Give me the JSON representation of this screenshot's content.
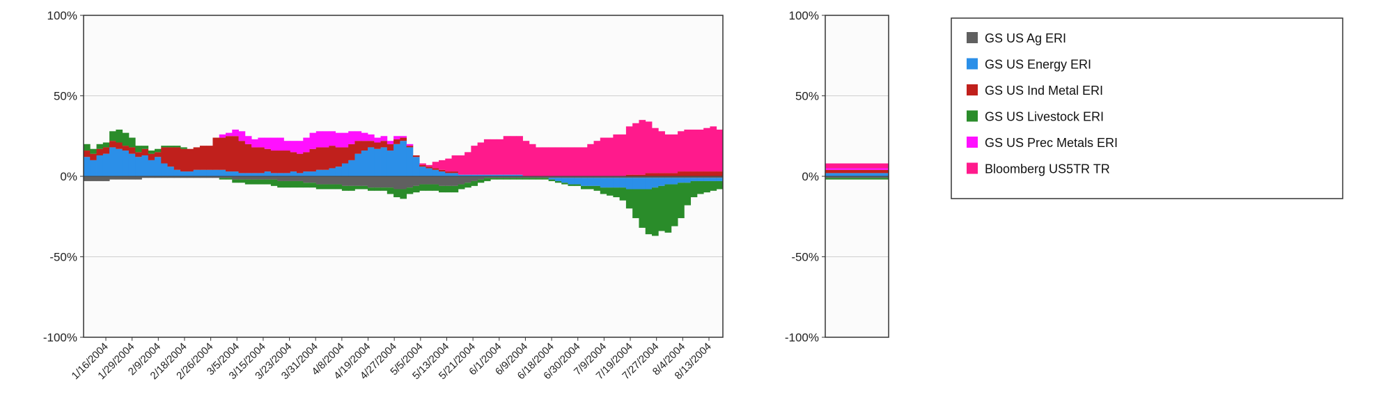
{
  "chart_data": [
    {
      "type": "bar",
      "stacked": true,
      "ylim": [
        -100,
        100
      ],
      "yticks": [
        "100%",
        "50%",
        "0%",
        "-50%",
        "-100%"
      ],
      "ytick_values": [
        100,
        50,
        0,
        -50,
        -100
      ],
      "grid": true,
      "x_tick_labels": [
        "1/16/2004",
        "1/29/2004",
        "2/9/2004",
        "2/18/2004",
        "2/26/2004",
        "3/5/2004",
        "3/15/2004",
        "3/23/2004",
        "3/31/2004",
        "4/8/2004",
        "4/19/2004",
        "4/27/2004",
        "5/5/2004",
        "5/13/2004",
        "5/21/2004",
        "6/1/2004",
        "6/9/2004",
        "6/18/2004",
        "6/30/2004",
        "7/9/2004",
        "7/19/2004",
        "7/27/2004",
        "8/4/2004",
        "8/13/2004"
      ],
      "series": [
        {
          "name": "GS US Ag ERI",
          "color": "#606060",
          "values": [
            -3,
            -3,
            -3,
            -3,
            -2,
            -2,
            -2,
            -2,
            -2,
            -1,
            -1,
            -1,
            -1,
            -1,
            -1,
            -1,
            -1,
            -1,
            -1,
            -1,
            -1,
            -1,
            -1,
            -2,
            -2,
            -2,
            -2,
            -2,
            -2,
            -2,
            -3,
            -3,
            -3,
            -3,
            -4,
            -4,
            -5,
            -5,
            -5,
            -5,
            -6,
            -6,
            -6,
            -6,
            -7,
            -7,
            -7,
            -7,
            -8,
            -8,
            -7,
            -6,
            -5,
            -5,
            -5,
            -6,
            -6,
            -6,
            -5,
            -4,
            -3,
            -2,
            -1,
            -1,
            -1,
            -1,
            -1,
            -1,
            -1,
            -1,
            -1,
            -1,
            -1,
            -1,
            -1,
            -1,
            -1,
            -1,
            -1,
            -1,
            -1,
            -1,
            -1,
            -1,
            -1,
            -1,
            -1,
            -1,
            -1,
            -1,
            -1,
            -1,
            -1,
            -1,
            -1,
            -1,
            -1,
            -1,
            -1
          ]
        },
        {
          "name": "GS US Energy ERI",
          "color": "#2b8fe8",
          "values": [
            12,
            10,
            13,
            14,
            18,
            17,
            16,
            14,
            12,
            13,
            10,
            12,
            8,
            6,
            4,
            3,
            3,
            4,
            4,
            4,
            4,
            4,
            3,
            3,
            2,
            2,
            2,
            2,
            3,
            2,
            2,
            2,
            3,
            2,
            3,
            3,
            4,
            4,
            5,
            6,
            8,
            10,
            14,
            16,
            18,
            17,
            18,
            16,
            20,
            22,
            18,
            12,
            6,
            5,
            4,
            3,
            2,
            2,
            1,
            1,
            1,
            1,
            1,
            1,
            1,
            1,
            1,
            1,
            0,
            0,
            0,
            0,
            -1,
            -2,
            -3,
            -4,
            -4,
            -5,
            -5,
            -5,
            -6,
            -6,
            -6,
            -6,
            -7,
            -7,
            -7,
            -7,
            -6,
            -5,
            -4,
            -4,
            -3,
            -3,
            -2,
            -2,
            -2,
            -2,
            -2
          ]
        },
        {
          "name": "GS US Ind Metal ERI",
          "color": "#c0201c",
          "values": [
            4,
            4,
            4,
            4,
            4,
            4,
            3,
            4,
            3,
            4,
            4,
            3,
            10,
            12,
            14,
            14,
            14,
            14,
            15,
            15,
            20,
            20,
            22,
            22,
            20,
            18,
            16,
            16,
            14,
            14,
            14,
            14,
            12,
            12,
            12,
            14,
            14,
            14,
            14,
            12,
            10,
            10,
            8,
            6,
            4,
            4,
            4,
            4,
            3,
            2,
            1,
            1,
            1,
            1,
            1,
            1,
            1,
            1,
            0,
            0,
            0,
            0,
            0,
            0,
            0,
            0,
            0,
            0,
            0,
            0,
            0,
            0,
            0,
            0,
            0,
            0,
            0,
            0,
            0,
            0,
            0,
            0,
            0,
            0,
            1,
            1,
            1,
            2,
            2,
            2,
            2,
            2,
            3,
            3,
            3,
            3,
            3,
            3,
            3
          ]
        },
        {
          "name": "GS US Livestock ERI",
          "color": "#2a8c2a",
          "values": [
            4,
            3,
            3,
            3,
            6,
            8,
            8,
            6,
            4,
            2,
            2,
            2,
            1,
            1,
            1,
            1,
            0,
            0,
            0,
            0,
            0,
            -1,
            -1,
            -2,
            -2,
            -3,
            -3,
            -3,
            -3,
            -4,
            -4,
            -4,
            -4,
            -4,
            -3,
            -3,
            -3,
            -3,
            -3,
            -3,
            -3,
            -3,
            -2,
            -2,
            -2,
            -2,
            -2,
            -4,
            -5,
            -6,
            -4,
            -4,
            -4,
            -4,
            -4,
            -4,
            -4,
            -4,
            -3,
            -3,
            -3,
            -2,
            -2,
            -1,
            -1,
            -1,
            -1,
            -1,
            -1,
            -1,
            -1,
            -1,
            -1,
            -1,
            -1,
            -1,
            -1,
            -2,
            -2,
            -3,
            -4,
            -5,
            -6,
            -8,
            -12,
            -18,
            -24,
            -28,
            -30,
            -28,
            -30,
            -26,
            -22,
            -14,
            -10,
            -8,
            -7,
            -6,
            -5
          ]
        },
        {
          "name": "GS US Prec Metals ERI",
          "color": "#ff10ff",
          "values": [
            0,
            0,
            0,
            0,
            0,
            0,
            0,
            0,
            0,
            0,
            0,
            0,
            0,
            0,
            0,
            0,
            0,
            0,
            0,
            0,
            0,
            2,
            2,
            4,
            6,
            5,
            5,
            6,
            7,
            8,
            8,
            6,
            7,
            8,
            9,
            10,
            10,
            10,
            9,
            9,
            9,
            8,
            6,
            5,
            4,
            3,
            3,
            2,
            2,
            1,
            1,
            0,
            0,
            0,
            0,
            0,
            0,
            0,
            0,
            0,
            0,
            0,
            0,
            0,
            0,
            0,
            0,
            0,
            0,
            0,
            0,
            0,
            0,
            0,
            0,
            0,
            0,
            0,
            0,
            0,
            0,
            0,
            0,
            0,
            0,
            0,
            0,
            0,
            0,
            0,
            0,
            0,
            0,
            0,
            0,
            0,
            0,
            0,
            0
          ]
        },
        {
          "name": "Bloomberg US5TR TR",
          "color": "#ff1a8c",
          "values": [
            0,
            0,
            0,
            0,
            0,
            0,
            0,
            0,
            0,
            0,
            0,
            0,
            0,
            0,
            0,
            0,
            0,
            0,
            0,
            0,
            0,
            0,
            0,
            0,
            0,
            0,
            0,
            0,
            0,
            0,
            0,
            0,
            0,
            0,
            0,
            0,
            0,
            0,
            0,
            0,
            0,
            0,
            0,
            0,
            0,
            0,
            0,
            0,
            0,
            0,
            0,
            0,
            1,
            1,
            4,
            6,
            8,
            10,
            12,
            14,
            18,
            20,
            22,
            22,
            22,
            24,
            24,
            24,
            22,
            20,
            18,
            18,
            18,
            18,
            18,
            18,
            18,
            18,
            20,
            22,
            24,
            24,
            26,
            26,
            30,
            32,
            34,
            32,
            28,
            26,
            24,
            24,
            25,
            26,
            26,
            26,
            27,
            28,
            26
          ]
        }
      ]
    },
    {
      "type": "bar",
      "stacked": true,
      "ylim": [
        -100,
        100
      ],
      "yticks": [
        "100%",
        "50%",
        "0%",
        "-50%",
        "-100%"
      ],
      "ytick_values": [
        100,
        50,
        0,
        -50,
        -100
      ],
      "grid": true,
      "series": [
        {
          "name": "GS US Ag ERI",
          "color": "#606060",
          "values": [
            -1
          ]
        },
        {
          "name": "GS US Energy ERI",
          "color": "#2b8fe8",
          "values": [
            2
          ]
        },
        {
          "name": "GS US Ind Metal ERI",
          "color": "#c0201c",
          "values": [
            2
          ]
        },
        {
          "name": "GS US Livestock ERI",
          "color": "#2a8c2a",
          "values": [
            -1
          ]
        },
        {
          "name": "GS US Prec Metals ERI",
          "color": "#ff10ff",
          "values": [
            1
          ]
        },
        {
          "name": "Bloomberg US5TR TR",
          "color": "#ff1a8c",
          "values": [
            3
          ]
        }
      ]
    }
  ],
  "legend": {
    "placement": "right",
    "items": [
      {
        "label": "GS US Ag ERI",
        "color": "#606060"
      },
      {
        "label": "GS US Energy ERI",
        "color": "#2b8fe8"
      },
      {
        "label": "GS US Ind Metal ERI",
        "color": "#c0201c"
      },
      {
        "label": "GS US Livestock ERI",
        "color": "#2a8c2a"
      },
      {
        "label": "GS US Prec Metals ERI",
        "color": "#ff10ff"
      },
      {
        "label": "Bloomberg US5TR TR",
        "color": "#ff1a8c"
      }
    ]
  }
}
